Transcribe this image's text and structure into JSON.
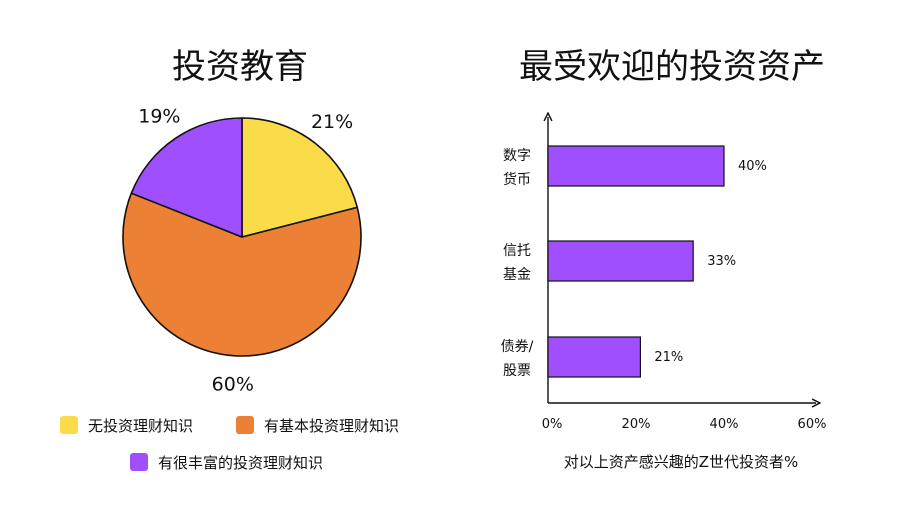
{
  "chart_data": [
    {
      "type": "pie",
      "title": "投资教育",
      "slices": [
        {
          "label": "无投资理财知识",
          "value": 21,
          "display": "21%",
          "color": "#fadc48"
        },
        {
          "label": "有基本投资理财知识",
          "value": 60,
          "display": "60%",
          "color": "#ec8135"
        },
        {
          "label": "有很丰富的投资理财知识",
          "value": 19,
          "display": "19%",
          "color": "#9f4ffd"
        }
      ],
      "legend_placement": "bottom"
    },
    {
      "type": "bar",
      "orientation": "horizontal",
      "title": "最受欢迎的投资资产",
      "categories": [
        {
          "lines": [
            "数字",
            "货币"
          ]
        },
        {
          "lines": [
            "信托",
            "基金"
          ]
        },
        {
          "lines": [
            "债券/",
            "股票"
          ]
        }
      ],
      "values": [
        40,
        33,
        21
      ],
      "value_labels": [
        "40%",
        "33%",
        "21%"
      ],
      "bar_color": "#9f4ffd",
      "xlim": [
        0,
        60
      ],
      "xticks": [
        0,
        20,
        40,
        60
      ],
      "xtick_labels": [
        "0%",
        "20%",
        "40%",
        "60%"
      ],
      "xlabel": "对以上资产感兴趣的Z世代投资者%",
      "grid": false
    }
  ]
}
